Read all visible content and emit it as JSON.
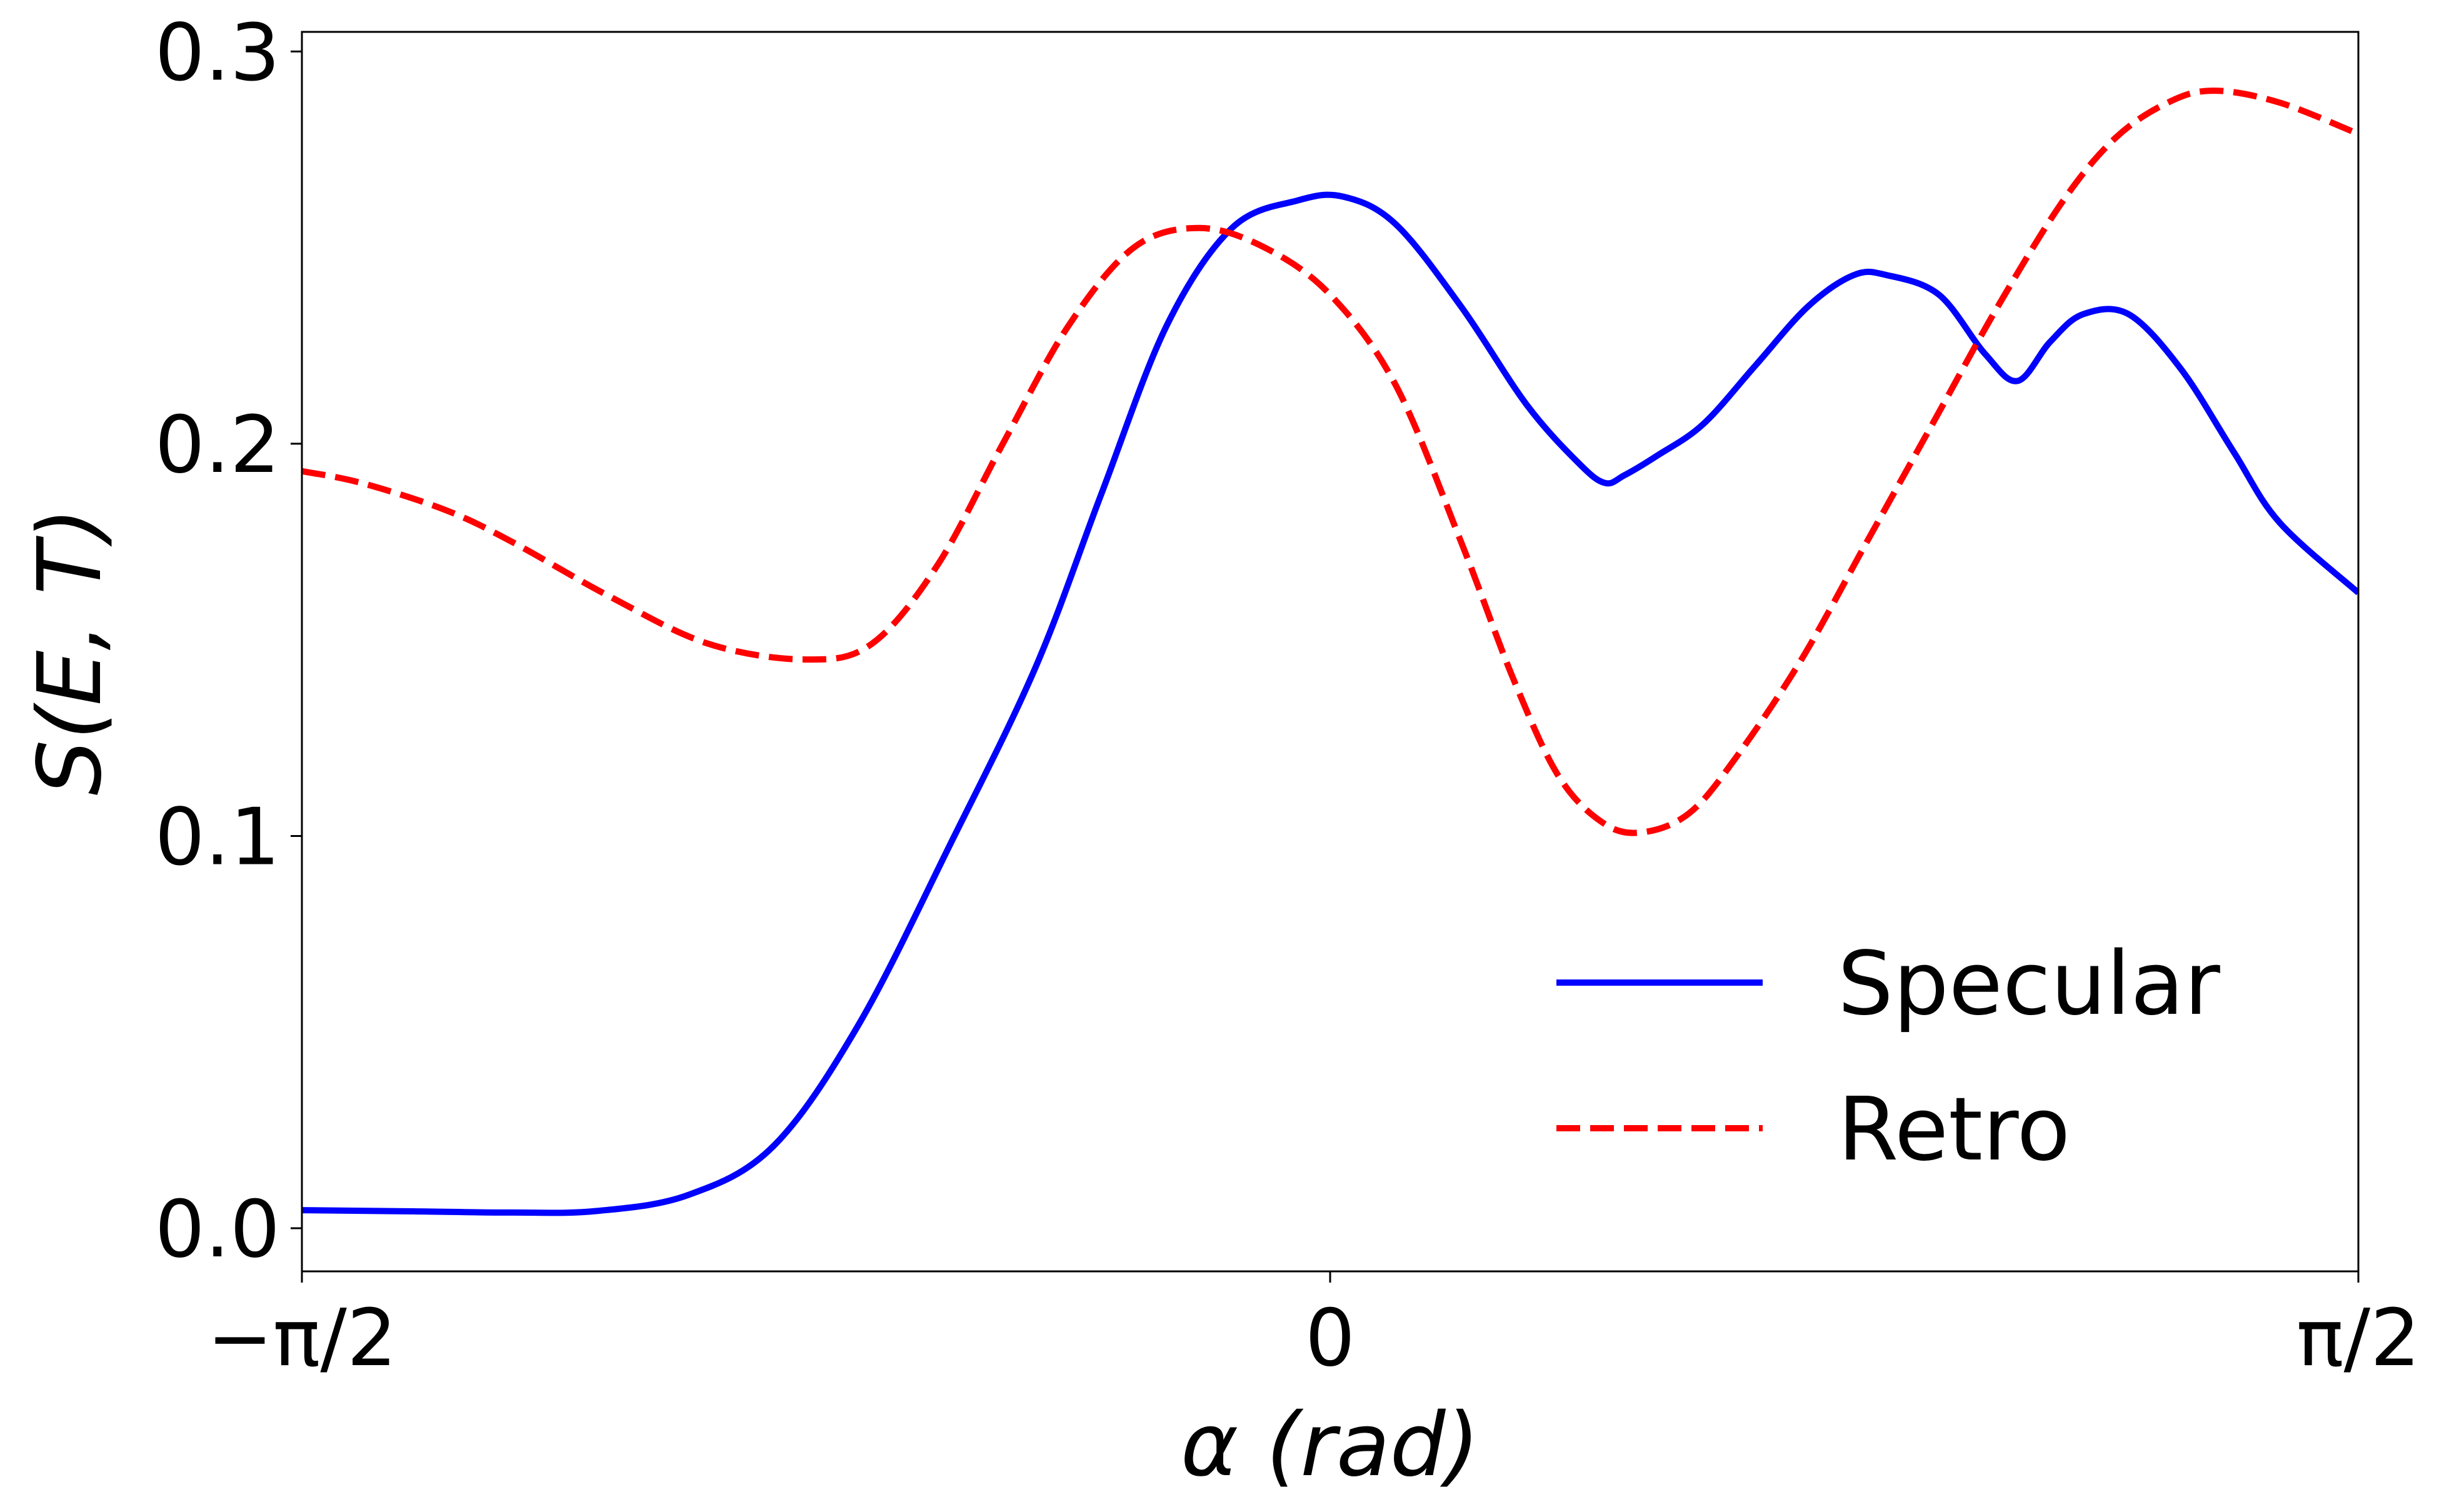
{
  "chart_data": {
    "type": "line",
    "title": "",
    "xlabel": "α (rad)",
    "ylabel": "S(E, T)",
    "xlim": [
      -1.5707963,
      1.5707963
    ],
    "ylim": [
      -0.011,
      0.305
    ],
    "x_ticks": [
      {
        "value": -1.5707963,
        "label": "−π/2"
      },
      {
        "value": 0,
        "label": "0"
      },
      {
        "value": 1.5707963,
        "label": "π/2"
      }
    ],
    "y_ticks": [
      {
        "value": 0.0,
        "label": "0.0"
      },
      {
        "value": 0.1,
        "label": "0.1"
      },
      {
        "value": 0.2,
        "label": "0.2"
      },
      {
        "value": 0.3,
        "label": "0.3"
      }
    ],
    "grid": false,
    "legend": {
      "position": "lower-right"
    },
    "series": [
      {
        "name": "Specular",
        "color": "#0000ff",
        "dash": "solid",
        "points": [
          [
            -1.5708,
            0.0046
          ],
          [
            -1.4,
            0.0043
          ],
          [
            -1.25,
            0.004
          ],
          [
            -1.12,
            0.0044
          ],
          [
            -0.98,
            0.0085
          ],
          [
            -0.85,
            0.021
          ],
          [
            -0.72,
            0.052
          ],
          [
            -0.58,
            0.098
          ],
          [
            -0.45,
            0.143
          ],
          [
            -0.35,
            0.187
          ],
          [
            -0.25,
            0.23
          ],
          [
            -0.15,
            0.255
          ],
          [
            -0.05,
            0.262
          ],
          [
            0.02,
            0.263
          ],
          [
            0.1,
            0.256
          ],
          [
            0.2,
            0.235
          ],
          [
            0.3,
            0.21
          ],
          [
            0.38,
            0.195
          ],
          [
            0.42,
            0.19
          ],
          [
            0.45,
            0.192
          ],
          [
            0.5,
            0.197
          ],
          [
            0.57,
            0.205
          ],
          [
            0.65,
            0.22
          ],
          [
            0.73,
            0.235
          ],
          [
            0.8,
            0.243
          ],
          [
            0.85,
            0.243
          ],
          [
            0.93,
            0.238
          ],
          [
            1.0,
            0.223
          ],
          [
            1.05,
            0.216
          ],
          [
            1.1,
            0.226
          ],
          [
            1.15,
            0.233
          ],
          [
            1.22,
            0.233
          ],
          [
            1.3,
            0.219
          ],
          [
            1.38,
            0.198
          ],
          [
            1.45,
            0.18
          ],
          [
            1.5708,
            0.162
          ]
        ]
      },
      {
        "name": "Retro",
        "color": "#ff0000",
        "dash": "dashed",
        "points": [
          [
            -1.5708,
            0.193
          ],
          [
            -1.48,
            0.19
          ],
          [
            -1.35,
            0.183
          ],
          [
            -1.25,
            0.175
          ],
          [
            -1.1,
            0.161
          ],
          [
            -0.95,
            0.149
          ],
          [
            -0.8,
            0.145
          ],
          [
            -0.7,
            0.149
          ],
          [
            -0.6,
            0.169
          ],
          [
            -0.5,
            0.2
          ],
          [
            -0.4,
            0.23
          ],
          [
            -0.3,
            0.25
          ],
          [
            -0.2,
            0.255
          ],
          [
            -0.1,
            0.25
          ],
          [
            0.0,
            0.238
          ],
          [
            0.1,
            0.215
          ],
          [
            0.2,
            0.175
          ],
          [
            0.28,
            0.14
          ],
          [
            0.35,
            0.115
          ],
          [
            0.42,
            0.103
          ],
          [
            0.48,
            0.101
          ],
          [
            0.55,
            0.106
          ],
          [
            0.62,
            0.12
          ],
          [
            0.72,
            0.145
          ],
          [
            0.82,
            0.175
          ],
          [
            0.92,
            0.205
          ],
          [
            1.02,
            0.235
          ],
          [
            1.12,
            0.262
          ],
          [
            1.2,
            0.278
          ],
          [
            1.28,
            0.287
          ],
          [
            1.35,
            0.29
          ],
          [
            1.45,
            0.287
          ],
          [
            1.5708,
            0.279
          ]
        ]
      }
    ]
  }
}
